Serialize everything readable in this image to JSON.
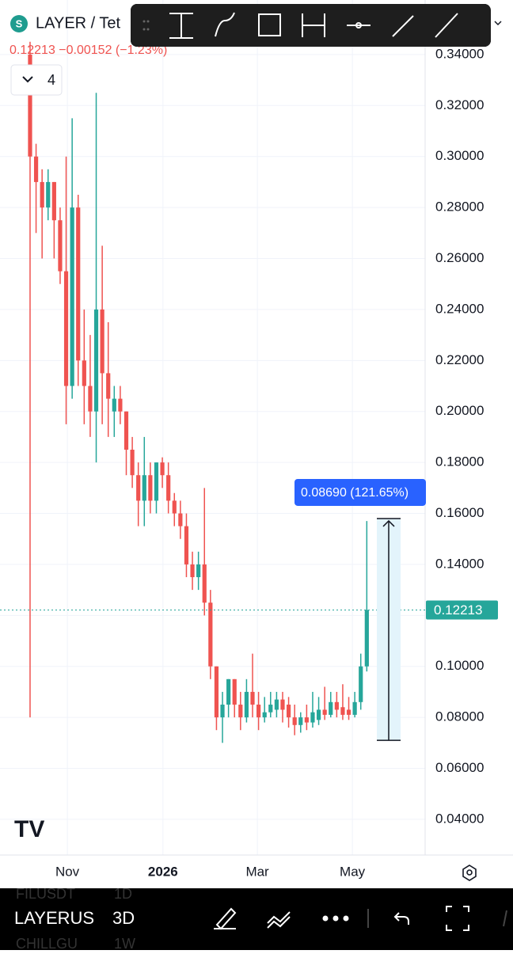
{
  "chart_data": {
    "type": "candlestick",
    "title": "LAYER / Tet",
    "subtitle": "0.12213 −0.00152 (−1.23%)",
    "indicator_count": "4",
    "up_color": "#26a69a",
    "down_color": "#ef5350",
    "grid": true,
    "open": [
      0.34,
      0.3,
      0.29,
      0.28,
      0.29,
      0.275,
      0.255,
      0.21,
      0.28,
      0.22,
      0.21,
      0.2,
      0.24,
      0.215,
      0.2,
      0.205,
      0.2,
      0.185,
      0.175,
      0.165,
      0.175,
      0.165,
      0.18,
      0.175,
      0.165,
      0.16,
      0.155,
      0.14,
      0.135,
      0.14,
      0.125,
      0.1,
      0.08,
      0.085,
      0.095,
      0.085,
      0.08,
      0.09,
      0.085,
      0.08,
      0.082,
      0.083,
      0.087,
      0.085,
      0.08,
      0.077,
      0.08,
      0.078,
      0.079,
      0.083,
      0.081,
      0.086,
      0.084,
      0.083,
      0.081,
      0.086,
      0.1
    ],
    "high": [
      0.345,
      0.305,
      0.295,
      0.295,
      0.29,
      0.28,
      0.3,
      0.315,
      0.285,
      0.24,
      0.23,
      0.325,
      0.265,
      0.235,
      0.21,
      0.21,
      0.2,
      0.19,
      0.18,
      0.19,
      0.18,
      0.18,
      0.182,
      0.18,
      0.168,
      0.165,
      0.16,
      0.145,
      0.145,
      0.17,
      0.13,
      0.1,
      0.09,
      0.095,
      0.095,
      0.09,
      0.095,
      0.105,
      0.09,
      0.088,
      0.09,
      0.09,
      0.09,
      0.088,
      0.085,
      0.082,
      0.085,
      0.09,
      0.088,
      0.092,
      0.09,
      0.09,
      0.093,
      0.088,
      0.09,
      0.105,
      0.157
    ],
    "low": [
      0.08,
      0.27,
      0.26,
      0.275,
      0.26,
      0.25,
      0.195,
      0.205,
      0.21,
      0.195,
      0.19,
      0.18,
      0.195,
      0.19,
      0.19,
      0.195,
      0.175,
      0.17,
      0.155,
      0.155,
      0.16,
      0.16,
      0.17,
      0.16,
      0.155,
      0.15,
      0.135,
      0.13,
      0.13,
      0.12,
      0.095,
      0.075,
      0.07,
      0.08,
      0.08,
      0.075,
      0.078,
      0.08,
      0.075,
      0.078,
      0.08,
      0.08,
      0.078,
      0.076,
      0.073,
      0.074,
      0.075,
      0.076,
      0.077,
      0.079,
      0.08,
      0.08,
      0.079,
      0.079,
      0.08,
      0.083,
      0.098
    ],
    "close": [
      0.3,
      0.29,
      0.28,
      0.29,
      0.275,
      0.255,
      0.21,
      0.28,
      0.22,
      0.21,
      0.2,
      0.24,
      0.215,
      0.205,
      0.205,
      0.2,
      0.185,
      0.175,
      0.165,
      0.175,
      0.165,
      0.18,
      0.175,
      0.165,
      0.16,
      0.155,
      0.14,
      0.135,
      0.14,
      0.125,
      0.1,
      0.08,
      0.085,
      0.095,
      0.085,
      0.08,
      0.09,
      0.085,
      0.08,
      0.082,
      0.085,
      0.087,
      0.083,
      0.08,
      0.077,
      0.08,
      0.078,
      0.082,
      0.083,
      0.081,
      0.086,
      0.083,
      0.081,
      0.081,
      0.086,
      0.1,
      0.12213
    ],
    "xlim": [
      -5,
      65.7
    ],
    "xticks": [
      {
        "value": 6.2,
        "label": "Nov"
      },
      {
        "value": 22.1,
        "label": "2026"
      },
      {
        "value": 37.8,
        "label": "Mar"
      },
      {
        "value": 53.6,
        "label": "May"
      }
    ],
    "ylim": [
      0.026,
      0.3614
    ],
    "yticks": [
      {
        "value": 0.04,
        "label": "0.04000"
      },
      {
        "value": 0.06,
        "label": "0.06000"
      },
      {
        "value": 0.08,
        "label": "0.08000"
      },
      {
        "value": 0.1,
        "label": "0.10000"
      },
      {
        "value": 0.12,
        "label": "0.12000"
      },
      {
        "value": 0.14,
        "label": "0.14000"
      },
      {
        "value": 0.16,
        "label": "0.16000"
      },
      {
        "value": 0.18,
        "label": "0.18000"
      },
      {
        "value": 0.2,
        "label": "0.20000"
      },
      {
        "value": 0.22,
        "label": "0.22000"
      },
      {
        "value": 0.24,
        "label": "0.24000"
      },
      {
        "value": 0.26,
        "label": "0.26000"
      },
      {
        "value": 0.28,
        "label": "0.28000"
      },
      {
        "value": 0.3,
        "label": "0.30000"
      },
      {
        "value": 0.32,
        "label": "0.32000"
      },
      {
        "value": 0.34,
        "label": "0.34000"
      }
    ],
    "last_price": {
      "value": 0.12213,
      "label": "0.12213"
    },
    "measure": {
      "from": 0.071,
      "to": 0.158,
      "label": "0.08690 (121.65%)"
    }
  },
  "toolbar": {
    "symbol": "LAYERUS",
    "interval": "3D",
    "hidden_symbols": [
      "FILUSDT",
      "CHILLGU"
    ],
    "hidden_intervals": [
      "1D",
      "1W"
    ]
  }
}
